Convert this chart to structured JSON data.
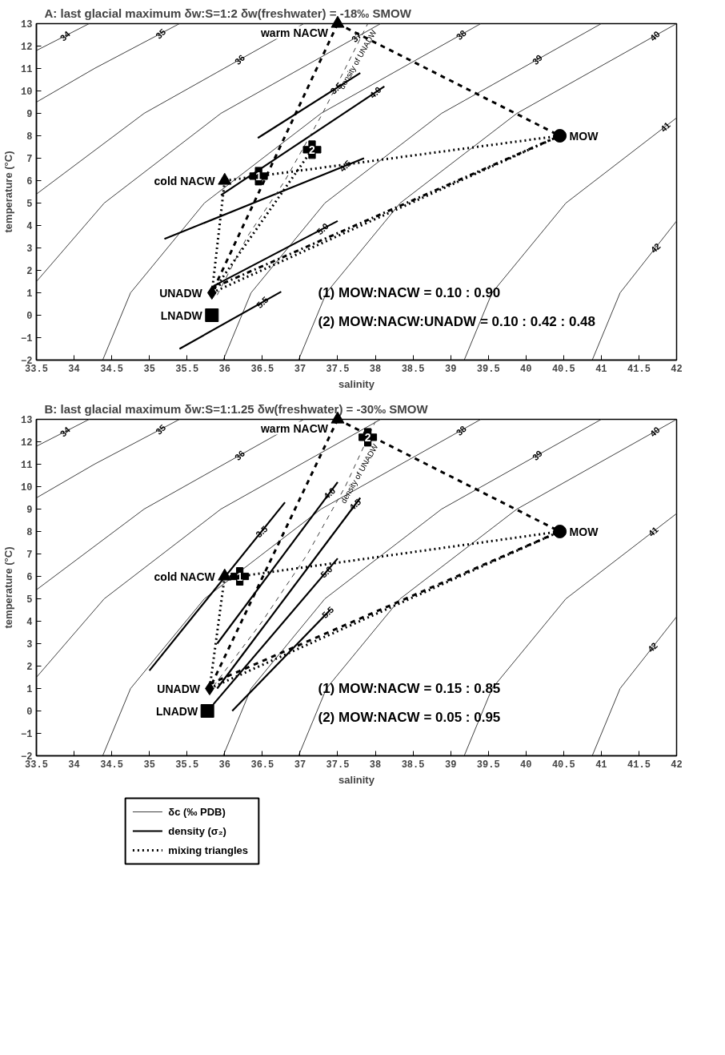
{
  "chart_data": [
    {
      "type": "line",
      "title": "A:   last glacial maximum    δw:S=1:2    δw(freshwater) = -18‰ SMOW",
      "xlabel": "salinity",
      "ylabel": "temperature (°C)",
      "xlim": [
        33.5,
        42
      ],
      "ylim": [
        -2,
        13
      ],
      "xticks": [
        33.5,
        34,
        34.5,
        35,
        35.5,
        36,
        36.5,
        37,
        37.5,
        38,
        38.5,
        39,
        39.5,
        40,
        40.5,
        41,
        41.5,
        42
      ],
      "yticks": [
        -2,
        -1,
        0,
        1,
        2,
        3,
        4,
        5,
        6,
        7,
        8,
        9,
        10,
        11,
        12,
        13
      ],
      "grid": false,
      "series": [
        {
          "color": "#404040",
          "line_style": "solid",
          "x": [
            33.5,
            34.2
          ],
          "values": [
            11.8,
            13
          ]
        },
        {
          "color": "#404040",
          "line_style": "solid",
          "x": [
            33.5,
            34.27,
            35.4
          ],
          "values": [
            9.5,
            11,
            13
          ]
        },
        {
          "color": "#404040",
          "line_style": "solid",
          "x": [
            33.5,
            34.93,
            37.05
          ],
          "values": [
            5.4,
            9,
            13
          ]
        },
        {
          "color": "#404040",
          "line_style": "solid",
          "x": [
            33.5,
            34.4,
            35.95,
            38.07
          ],
          "values": [
            1.5,
            5,
            9,
            13
          ]
        },
        {
          "color": "#404040",
          "line_style": "solid",
          "x": [
            34.38,
            34.75,
            35.73,
            37.28,
            39.4
          ],
          "values": [
            -2,
            1,
            5,
            9,
            13
          ]
        },
        {
          "color": "#404040",
          "line_style": "solid",
          "x": [
            35.98,
            36.35,
            37.33,
            38.88,
            41.0
          ],
          "values": [
            -2,
            1,
            5,
            9,
            13
          ]
        },
        {
          "color": "#404040",
          "line_style": "solid",
          "x": [
            36.98,
            37.35,
            38.33,
            39.88,
            42.0
          ],
          "values": [
            -2,
            1,
            5,
            9,
            13
          ]
        },
        {
          "color": "#404040",
          "line_style": "solid",
          "x": [
            39.18,
            39.55,
            40.53,
            42.0
          ],
          "values": [
            -2,
            1,
            5,
            8.8
          ]
        },
        {
          "color": "#404040",
          "line_style": "solid",
          "x": [
            40.88,
            41.25,
            42.0
          ],
          "values": [
            -2,
            1,
            4.2
          ]
        },
        {
          "color": "#000000",
          "line_style": "solid",
          "x": [
            36.44,
            37.8
          ],
          "values": [
            7.9,
            10.8
          ]
        },
        {
          "color": "#000000",
          "line_style": "solid",
          "x": [
            35.95,
            38.12
          ],
          "values": [
            5.35,
            10.2
          ]
        },
        {
          "color": "#000000",
          "line_style": "solid",
          "x": [
            35.2,
            37.85
          ],
          "values": [
            3.4,
            7.0
          ]
        },
        {
          "color": "#000000",
          "line_style": "solid",
          "x": [
            35.85,
            37.5
          ],
          "values": [
            1.3,
            4.2
          ]
        },
        {
          "color": "#000000",
          "line_style": "solid",
          "x": [
            35.4,
            36.75
          ],
          "values": [
            -1.5,
            1.05
          ]
        },
        {
          "name": "density of UNADW",
          "color": "#404040",
          "line_style": "dashed",
          "x": [
            35.9,
            36.3,
            36.8,
            37.3,
            37.9
          ],
          "values": [
            0.9,
            3.5,
            6,
            9,
            13
          ]
        },
        {
          "color": "#000000",
          "line_style": "dashed",
          "x": [
            37.5,
            40.45
          ],
          "values": [
            13,
            8
          ]
        },
        {
          "color": "#000000",
          "line_style": "dashed",
          "x": [
            37.5,
            35.83
          ],
          "values": [
            13,
            1.0
          ]
        },
        {
          "color": "#000000",
          "line_style": "dotted",
          "x": [
            36.0,
            36.45,
            40.45
          ],
          "values": [
            6,
            6.2,
            8
          ]
        },
        {
          "color": "#000000",
          "line_style": "dotted",
          "x": [
            36.0,
            35.83
          ],
          "values": [
            6,
            1.0
          ]
        },
        {
          "color": "#000000",
          "line_style": "dotted",
          "x": [
            35.83,
            40.45
          ],
          "values": [
            1.0,
            8
          ]
        },
        {
          "color": "#000000",
          "line_style": "dashdot",
          "x": [
            35.83,
            40.45
          ],
          "values": [
            1.2,
            8
          ]
        },
        {
          "color": "#000000",
          "line_style": "dotted",
          "x": [
            37.16,
            35.83
          ],
          "values": [
            7.38,
            1.0
          ]
        },
        {
          "type": "scatter",
          "marker": "triangle",
          "color": "#000000",
          "x": [
            37.5,
            36.0
          ],
          "values": [
            13,
            6
          ]
        },
        {
          "type": "scatter",
          "marker": "circle",
          "color": "#000000",
          "x": [
            40.45
          ],
          "values": [
            8
          ]
        },
        {
          "type": "scatter",
          "marker": "diamond",
          "color": "#000000",
          "x": [
            35.83
          ],
          "values": [
            1.0
          ]
        },
        {
          "type": "scatter",
          "marker": "square",
          "color": "#000000",
          "x": [
            35.83
          ],
          "values": [
            0.0
          ]
        },
        {
          "type": "scatter",
          "marker": "cross",
          "color": "#000000",
          "x": [
            36.45,
            37.16
          ],
          "values": [
            6.2,
            7.38
          ]
        }
      ],
      "annotations": [
        {
          "text": "warm NACW",
          "x": 37.5,
          "y": 13
        },
        {
          "text": "cold NACW",
          "x": 36.0,
          "y": 6
        },
        {
          "text": "MOW",
          "x": 40.45,
          "y": 8
        },
        {
          "text": "UNADW",
          "x": 35.83,
          "y": 1.0
        },
        {
          "text": "LNADW",
          "x": 35.83,
          "y": 0.0
        },
        {
          "text": "1",
          "x": 36.45,
          "y": 6.2
        },
        {
          "text": "2",
          "x": 37.16,
          "y": 7.38
        },
        {
          "text": "34",
          "x": 33.88,
          "y": 12.45
        },
        {
          "text": "35",
          "x": 35.15,
          "y": 12.55
        },
        {
          "text": "36",
          "x": 36.2,
          "y": 11.4
        },
        {
          "text": "37",
          "x": 37.75,
          "y": 12.4
        },
        {
          "text": "38",
          "x": 39.14,
          "y": 12.5
        },
        {
          "text": "39",
          "x": 40.15,
          "y": 11.4
        },
        {
          "text": "40",
          "x": 41.71,
          "y": 12.45
        },
        {
          "text": "41",
          "x": 41.85,
          "y": 8.4
        },
        {
          "text": "42",
          "x": 41.72,
          "y": 3.0
        },
        {
          "text": "3.5",
          "x": 37.48,
          "y": 10.12
        },
        {
          "text": "4.0",
          "x": 38.0,
          "y": 9.93
        },
        {
          "text": "4.5",
          "x": 37.6,
          "y": 6.66
        },
        {
          "text": "5.0",
          "x": 37.3,
          "y": 3.85
        },
        {
          "text": "5.5",
          "x": 36.5,
          "y": 0.58
        },
        "(1) MOW:NACW = 0.10 : 0.90",
        "(2) MOW:NACW:UNADW = 0.10 : 0.42 : 0.48"
      ]
    },
    {
      "type": "line",
      "title": "B:   last glacial maximum    δw:S=1:1.25    δw(freshwater) = -30‰ SMOW",
      "xlabel": "salinity",
      "ylabel": "temperature (°C)",
      "xlim": [
        33.5,
        42
      ],
      "ylim": [
        -2,
        13
      ],
      "xticks": [
        33.5,
        34,
        34.5,
        35,
        35.5,
        36,
        36.5,
        37,
        37.5,
        38,
        38.5,
        39,
        39.5,
        40,
        40.5,
        41,
        41.5,
        42
      ],
      "yticks": [
        -2,
        -1,
        0,
        1,
        2,
        3,
        4,
        5,
        6,
        7,
        8,
        9,
        10,
        11,
        12,
        13
      ],
      "grid": false,
      "legend": "bottom left",
      "series": [
        {
          "color": "#404040",
          "line_style": "solid",
          "x": [
            33.5,
            34.2
          ],
          "values": [
            11.8,
            13
          ]
        },
        {
          "color": "#404040",
          "line_style": "solid",
          "x": [
            33.5,
            34.27,
            35.4
          ],
          "values": [
            9.5,
            11,
            13
          ]
        },
        {
          "color": "#404040",
          "line_style": "solid",
          "x": [
            33.5,
            34.93,
            37.05
          ],
          "values": [
            5.4,
            9,
            13
          ]
        },
        {
          "color": "#404040",
          "line_style": "solid",
          "x": [
            33.5,
            34.4,
            35.95,
            38.07
          ],
          "values": [
            1.5,
            5,
            9,
            13
          ]
        },
        {
          "color": "#404040",
          "line_style": "solid",
          "x": [
            34.38,
            34.75,
            35.73,
            37.28,
            39.4
          ],
          "values": [
            -2,
            1,
            5,
            9,
            13
          ]
        },
        {
          "color": "#404040",
          "line_style": "solid",
          "x": [
            35.98,
            36.35,
            37.33,
            38.88,
            41.0
          ],
          "values": [
            -2,
            1,
            5,
            9,
            13
          ]
        },
        {
          "color": "#404040",
          "line_style": "solid",
          "x": [
            36.98,
            37.35,
            38.33,
            39.88,
            42.0
          ],
          "values": [
            -2,
            1,
            5,
            9,
            13
          ]
        },
        {
          "color": "#404040",
          "line_style": "solid",
          "x": [
            39.18,
            39.55,
            40.53,
            42.0
          ],
          "values": [
            -2,
            1,
            5,
            8.8
          ]
        },
        {
          "color": "#404040",
          "line_style": "solid",
          "x": [
            40.88,
            41.25,
            42.0
          ],
          "values": [
            -2,
            1,
            4.2
          ]
        },
        {
          "color": "#000000",
          "line_style": "solid",
          "x": [
            35.0,
            36.8
          ],
          "values": [
            1.8,
            9.3
          ]
        },
        {
          "color": "#000000",
          "line_style": "solid",
          "x": [
            35.9,
            37.5
          ],
          "values": [
            3.0,
            10.2
          ]
        },
        {
          "color": "#000000",
          "line_style": "solid",
          "x": [
            35.9,
            37.8
          ],
          "values": [
            1.0,
            9.5
          ]
        },
        {
          "color": "#000000",
          "line_style": "solid",
          "x": [
            35.85,
            37.5
          ],
          "values": [
            0.3,
            6.8
          ]
        },
        {
          "color": "#000000",
          "line_style": "solid",
          "x": [
            36.1,
            37.4
          ],
          "values": [
            0.0,
            4.5
          ]
        },
        {
          "name": "density of UNADW",
          "color": "#404040",
          "line_style": "dashed",
          "x": [
            35.85,
            36.5,
            37.1,
            37.6,
            38.0
          ],
          "values": [
            1.1,
            4,
            7,
            10,
            12.9
          ]
        },
        {
          "color": "#000000",
          "line_style": "dashed",
          "x": [
            37.5,
            35.8
          ],
          "values": [
            13,
            1.0
          ]
        },
        {
          "color": "#000000",
          "line_style": "dashed",
          "x": [
            37.5,
            40.45
          ],
          "values": [
            13,
            8
          ]
        },
        {
          "color": "#000000",
          "line_style": "dotted",
          "x": [
            36.0,
            36.2,
            40.45
          ],
          "values": [
            6,
            6.0,
            8
          ]
        },
        {
          "color": "#000000",
          "line_style": "dotted",
          "x": [
            36.0,
            35.8
          ],
          "values": [
            6,
            1.0
          ]
        },
        {
          "color": "#000000",
          "line_style": "dashed",
          "x": [
            35.8,
            40.45
          ],
          "values": [
            1.2,
            8
          ]
        },
        {
          "color": "#000000",
          "line_style": "dotted",
          "x": [
            35.8,
            40.45
          ],
          "values": [
            1.0,
            8
          ]
        },
        {
          "type": "scatter",
          "marker": "triangle",
          "color": "#000000",
          "x": [
            37.5,
            36.0
          ],
          "values": [
            13,
            6
          ]
        },
        {
          "type": "scatter",
          "marker": "circle",
          "color": "#000000",
          "x": [
            40.45
          ],
          "values": [
            8
          ]
        },
        {
          "type": "scatter",
          "marker": "diamond",
          "color": "#000000",
          "x": [
            35.8
          ],
          "values": [
            1.0
          ]
        },
        {
          "type": "scatter",
          "marker": "square",
          "color": "#000000",
          "x": [
            35.77
          ],
          "values": [
            0.0
          ]
        },
        {
          "type": "scatter",
          "marker": "cross",
          "color": "#000000",
          "x": [
            36.2,
            37.9
          ],
          "values": [
            6.0,
            12.2
          ]
        },
        {
          "name": "δc (‰ PDB)",
          "color": "#404040",
          "line_style": "solid"
        },
        {
          "name": "density (σ₂)",
          "color": "#000000",
          "line_style": "solid"
        },
        {
          "name": "mixing triangles",
          "color": "#000000",
          "line_style": "dotted"
        }
      ],
      "annotations": [
        {
          "text": "warm NACW",
          "x": 37.5,
          "y": 13
        },
        {
          "text": "cold NACW",
          "x": 36.0,
          "y": 6
        },
        {
          "text": "MOW",
          "x": 40.45,
          "y": 8
        },
        {
          "text": "UNADW",
          "x": 35.8,
          "y": 1.0
        },
        {
          "text": "LNADW",
          "x": 35.77,
          "y": 0.0
        },
        {
          "text": "1",
          "x": 36.2,
          "y": 6.0
        },
        {
          "text": "2",
          "x": 37.9,
          "y": 12.2
        },
        {
          "text": "34",
          "x": 33.88,
          "y": 12.45
        },
        {
          "text": "35",
          "x": 35.15,
          "y": 12.55
        },
        {
          "text": "36",
          "x": 36.2,
          "y": 11.4
        },
        {
          "text": "38",
          "x": 39.14,
          "y": 12.5
        },
        {
          "text": "39",
          "x": 40.15,
          "y": 11.4
        },
        {
          "text": "40",
          "x": 41.71,
          "y": 12.45
        },
        {
          "text": "41",
          "x": 41.69,
          "y": 8.0
        },
        {
          "text": "42",
          "x": 41.68,
          "y": 2.84
        },
        {
          "text": "3.5",
          "x": 36.49,
          "y": 8.0
        },
        {
          "text": "4.0",
          "x": 37.39,
          "y": 9.7
        },
        {
          "text": "4.5",
          "x": 37.73,
          "y": 9.2
        },
        {
          "text": "5.0",
          "x": 37.35,
          "y": 6.2
        },
        {
          "text": "5.5",
          "x": 37.37,
          "y": 4.4
        },
        "(1) MOW:NACW = 0.15 : 0.85",
        "(2) MOW:NACW = 0.05 : 0.95"
      ]
    }
  ]
}
